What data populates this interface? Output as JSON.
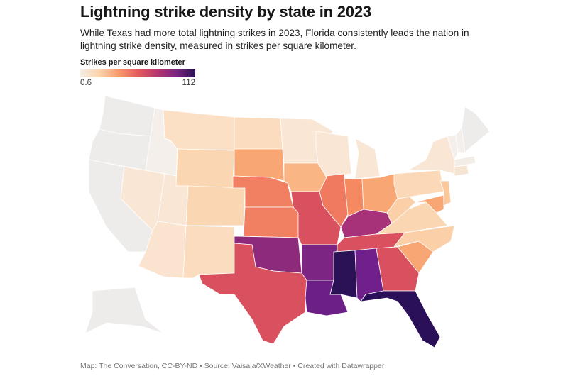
{
  "title": "Lightning strike density by state in 2023",
  "subtitle": "While Texas had more total lightning strikes in 2023, Florida consistently leads the nation in lightning strike density, measured in strikes per square kilometer.",
  "legend": {
    "title": "Strikes per square kilometer",
    "min": "0.6",
    "max": "112",
    "colors": [
      "#f6eee6",
      "#fbd3ad",
      "#f89a68",
      "#e35d5d",
      "#b5376e",
      "#7d2482",
      "#2b1157"
    ]
  },
  "footer": "Map: The Conversation, CC-BY-ND • Source: Vaisala/XWeather • Created with Datawrapper",
  "no_data_color": "#eeecea",
  "states": {
    "WA": "#eeecea",
    "OR": "#eeecea",
    "CA": "#eeecea",
    "ID": "#f4efeb",
    "AK": "#eeecea",
    "NV": "#fae6d5",
    "UT": "#fae6d5",
    "AZ": "#fae3cf",
    "NM": "#fbdcbf",
    "CO": "#fbd6b2",
    "WY": "#fbd6b2",
    "MT": "#fbe0c6",
    "ND": "#fbdcbf",
    "SD": "#f9a675",
    "NE": "#f17f62",
    "KS": "#f17f62",
    "OK": "#8e2a7b",
    "TX": "#d9505e",
    "MN": "#fae6d5",
    "IA": "#f9b584",
    "MO": "#d9505e",
    "AR": "#7d2582",
    "LA": "#6c1f86",
    "WI": "#fae6d5",
    "IL": "#ef7a5f",
    "MI": "#fae6d5",
    "IN": "#f58a62",
    "OH": "#f9a675",
    "KY": "#a8327a",
    "TN": "#d9505e",
    "MS": "#2b1257",
    "AL": "#70208a",
    "GA": "#d9505e",
    "FL": "#2a1058",
    "SC": "#f9a675",
    "NC": "#fbd0a8",
    "VA": "#fbd6b2",
    "WV": "#fbd0a8",
    "PA": "#fbd9b8",
    "NY": "#fae6d5",
    "MD": "#f9a675",
    "NJ": "#fbc89c",
    "VT": "#f4efeb",
    "NH": "#f4efeb",
    "ME": "#eeecea",
    "MA": "#f4ede6",
    "CT": "#f6e4d2"
  }
}
